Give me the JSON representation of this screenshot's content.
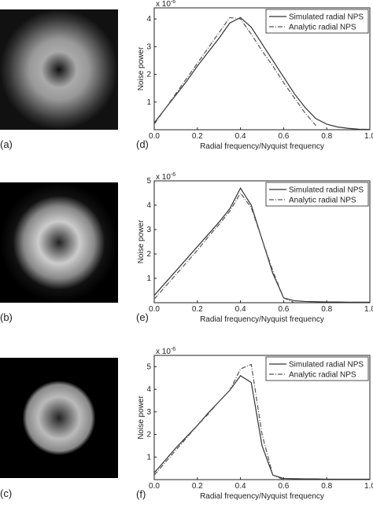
{
  "panels": [
    "(a)",
    "(b)",
    "(c)"
  ],
  "chart_data": [
    {
      "type": "line",
      "label": "(d)",
      "xlabel": "Radial frequency/Nyquist frequency",
      "ylabel": "Noise power",
      "y_multiplier": "x 10",
      "y_multiplier_exponent": "-6",
      "xlim": [
        0,
        1
      ],
      "ylim": [
        0,
        4.4
      ],
      "xticks": [
        {
          "value": 0,
          "label": "0.0"
        },
        0.2,
        0.4,
        0.6,
        0.8,
        {
          "value": 1,
          "label": "1.0"
        }
      ],
      "yticks": [
        1,
        2,
        3,
        4
      ],
      "x": [
        0,
        0.05,
        0.1,
        0.15,
        0.2,
        0.25,
        0.3,
        0.35,
        0.4,
        0.45,
        0.5,
        0.55,
        0.6,
        0.65,
        0.7,
        0.75,
        0.8,
        0.85,
        0.9,
        0.95,
        1
      ],
      "series": [
        {
          "name": "Simulated radial NPS",
          "color": "#333333",
          "style": "solid",
          "values": [
            0.25,
            0.75,
            1.25,
            1.75,
            2.3,
            2.8,
            3.3,
            3.85,
            4.05,
            3.7,
            3.1,
            2.5,
            1.9,
            1.3,
            0.8,
            0.4,
            0.2,
            0.1,
            0.05,
            0.02,
            0.01
          ]
        },
        {
          "name": "Analytic radial NPS",
          "color": "#555555",
          "style": "dashdot",
          "values": [
            0.2,
            0.75,
            1.3,
            1.85,
            2.4,
            2.95,
            3.5,
            4.05,
            4.0,
            3.45,
            2.85,
            2.3,
            1.7,
            1.15,
            0.6,
            0.15,
            null,
            null,
            null,
            null,
            null
          ]
        }
      ],
      "legend": "upper right"
    },
    {
      "type": "line",
      "label": "(e)",
      "xlabel": "Radial frequency/Nyquist frequency",
      "ylabel": "Noise power",
      "y_multiplier": "x 10",
      "y_multiplier_exponent": "-6",
      "xlim": [
        0,
        1
      ],
      "ylim": [
        0,
        5
      ],
      "xticks": [
        {
          "value": 0,
          "label": "0.0"
        },
        0.2,
        0.4,
        0.6,
        0.8,
        {
          "value": 1,
          "label": "1.0"
        }
      ],
      "yticks": [
        1,
        2,
        3,
        4,
        5
      ],
      "x": [
        0,
        0.05,
        0.1,
        0.15,
        0.2,
        0.25,
        0.3,
        0.35,
        0.4,
        0.45,
        0.5,
        0.55,
        0.6,
        0.65,
        0.7,
        0.75,
        0.8,
        0.85,
        0.9,
        0.95,
        1
      ],
      "series": [
        {
          "name": "Simulated radial NPS",
          "color": "#333333",
          "style": "solid",
          "values": [
            0.3,
            0.8,
            1.3,
            1.8,
            2.3,
            2.8,
            3.3,
            3.85,
            4.7,
            4.0,
            2.6,
            1.2,
            0.2,
            0.08,
            0.05,
            0.04,
            0.03,
            0.03,
            0.02,
            0.02,
            0.02
          ]
        },
        {
          "name": "Analytic radial NPS",
          "color": "#555555",
          "style": "dashdot",
          "values": [
            0.15,
            0.65,
            1.15,
            1.65,
            2.15,
            2.7,
            3.2,
            3.75,
            4.5,
            3.9,
            2.6,
            1.3,
            0.2,
            0,
            null,
            null,
            null,
            null,
            null,
            null,
            null
          ]
        }
      ],
      "legend": "upper right"
    },
    {
      "type": "line",
      "label": "(f)",
      "xlabel": "Radial frequency/Nyquist frequency",
      "ylabel": "Noise power",
      "y_multiplier": "x 10",
      "y_multiplier_exponent": "-6",
      "xlim": [
        0,
        1
      ],
      "ylim": [
        0,
        5.5
      ],
      "xticks": [
        {
          "value": 0,
          "label": "0.0"
        },
        0.2,
        0.4,
        0.6,
        0.8,
        {
          "value": 1,
          "label": "1.0"
        }
      ],
      "yticks": [
        1,
        2,
        3,
        4,
        5
      ],
      "x": [
        0,
        0.05,
        0.1,
        0.15,
        0.2,
        0.25,
        0.3,
        0.35,
        0.4,
        0.45,
        0.5,
        0.55,
        0.6,
        0.65,
        0.7,
        0.75,
        0.8,
        0.85,
        0.9,
        0.95,
        1
      ],
      "series": [
        {
          "name": "Simulated radial NPS",
          "color": "#333333",
          "style": "solid",
          "values": [
            0.3,
            0.85,
            1.4,
            1.9,
            2.4,
            2.95,
            3.45,
            3.95,
            4.6,
            4.3,
            1.5,
            0.2,
            0.05,
            0.04,
            0.03,
            0.03,
            0.02,
            0.02,
            0.02,
            0.02,
            0.02
          ]
        },
        {
          "name": "Analytic radial NPS",
          "color": "#555555",
          "style": "dashdot",
          "values": [
            0.2,
            0.75,
            1.3,
            1.85,
            2.4,
            2.9,
            3.45,
            3.95,
            4.9,
            5.1,
            2.0,
            0.2,
            0,
            null,
            null,
            null,
            null,
            null,
            null,
            null,
            null
          ]
        }
      ],
      "legend": "upper right"
    }
  ]
}
